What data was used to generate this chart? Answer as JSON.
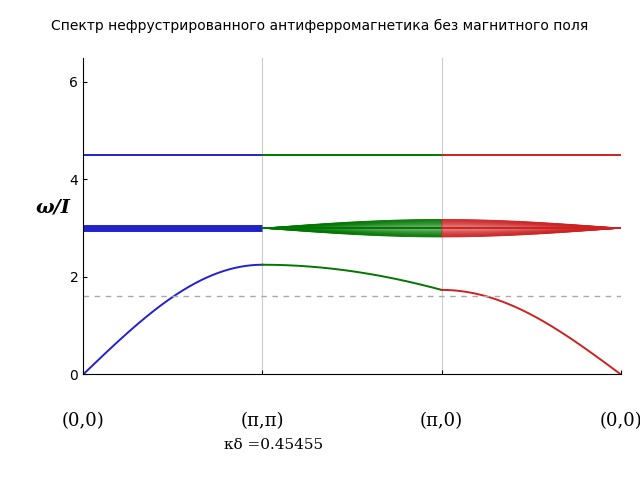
{
  "title": "Спектр нефрустрированного антиферромагнетика без магнитного поля",
  "ylabel": "ω/I",
  "xlabel_ticks": [
    "(0,0)",
    "(π,π)",
    "(π,0)",
    "(0,0)"
  ],
  "annotation": "κδ =0.45455",
  "ylim": [
    0,
    6.5
  ],
  "yticks": [
    0,
    2,
    4,
    6
  ],
  "flat_upper": 4.5,
  "flat_mid": 3.0,
  "dashed_line_y": 1.6,
  "blue_color": "#2222cc",
  "green_color": "#007700",
  "red_color": "#cc2222",
  "dashed_color": "#aaaaaa",
  "background_color": "#ffffff",
  "grid_color": "#cccccc",
  "n_fan": 20,
  "fan_max_amp": 0.18
}
